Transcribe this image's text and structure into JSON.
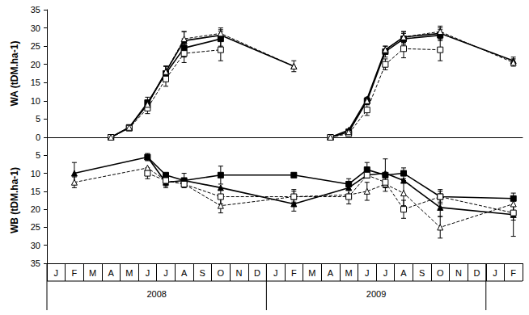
{
  "chart_data": [
    {
      "type": "line",
      "y_label": "WA (tDM.ha-1)",
      "categories": [
        "J",
        "F",
        "M",
        "A",
        "M",
        "J",
        "J",
        "A",
        "S",
        "O",
        "N",
        "D",
        "J",
        "F",
        "M",
        "A",
        "M",
        "J",
        "J",
        "A",
        "S",
        "O",
        "N",
        "D",
        "J",
        "F"
      ],
      "ylim": [
        0,
        35
      ],
      "yticks": [
        0,
        5,
        10,
        15,
        20,
        25,
        30,
        35
      ],
      "grid": false,
      "tick_labels": "y",
      "series": [
        {
          "color": "#000000",
          "marker": "square",
          "line_style": "solid",
          "values": [
            null,
            null,
            null,
            0,
            2.7,
            9.5,
            17.5,
            24.5,
            null,
            27,
            null,
            null,
            null,
            null,
            null,
            null,
            null,
            null,
            null,
            null,
            null,
            null,
            null,
            null,
            null,
            null
          ],
          "errors": [
            null,
            null,
            null,
            null,
            null,
            1.5,
            2,
            2.5,
            null,
            2,
            null,
            null,
            null,
            null,
            null,
            null,
            null,
            null,
            null,
            null,
            null,
            null,
            null,
            null,
            null,
            null
          ]
        },
        {
          "color": "#000000",
          "marker": "triangle",
          "line_style": "solid",
          "values": [
            null,
            null,
            null,
            0,
            2.7,
            9,
            18,
            26.5,
            null,
            28,
            null,
            null,
            null,
            19.5,
            null,
            null,
            null,
            null,
            null,
            null,
            null,
            null,
            null,
            null,
            null,
            null
          ],
          "errors": [
            null,
            null,
            null,
            null,
            null,
            1,
            1.5,
            2.5,
            null,
            1.5,
            null,
            null,
            null,
            1.5,
            null,
            null,
            null,
            null,
            null,
            null,
            null,
            null,
            null,
            null,
            null,
            null
          ]
        },
        {
          "color": "#000000",
          "marker": "open_square",
          "line_style": "dashed",
          "values": [
            null,
            null,
            null,
            0,
            2.5,
            8,
            16,
            23,
            null,
            24,
            null,
            null,
            null,
            null,
            null,
            null,
            null,
            null,
            null,
            null,
            null,
            null,
            null,
            null,
            null,
            null
          ],
          "errors": [
            null,
            null,
            null,
            null,
            null,
            1.5,
            2,
            2.5,
            null,
            3,
            null,
            null,
            null,
            null,
            null,
            null,
            null,
            null,
            null,
            null,
            null,
            null,
            null,
            null,
            null,
            null
          ]
        },
        {
          "color": "#000000",
          "marker": "open_triangle",
          "line_style": "dashed",
          "values": [
            null,
            null,
            null,
            0,
            2.7,
            9,
            18,
            27,
            null,
            28.5,
            null,
            null,
            null,
            19.5,
            null,
            null,
            null,
            null,
            null,
            null,
            null,
            null,
            null,
            null,
            null,
            null
          ],
          "errors": [
            null,
            null,
            null,
            null,
            null,
            1,
            1.5,
            2,
            null,
            1.5,
            null,
            null,
            null,
            null,
            null,
            null,
            null,
            null,
            null,
            null,
            null,
            null,
            null,
            null,
            null,
            null
          ]
        },
        {
          "color": "#000000",
          "marker": "square",
          "line_style": "solid",
          "values": [
            null,
            null,
            null,
            null,
            null,
            null,
            null,
            null,
            null,
            null,
            null,
            null,
            null,
            null,
            null,
            0,
            1.5,
            10,
            23.5,
            27,
            null,
            28,
            null,
            null,
            null,
            null
          ],
          "errors": [
            null,
            null,
            null,
            null,
            null,
            null,
            null,
            null,
            null,
            null,
            null,
            null,
            null,
            null,
            null,
            null,
            null,
            1,
            1.5,
            1.5,
            null,
            1.5,
            null,
            null,
            null,
            null
          ]
        },
        {
          "color": "#000000",
          "marker": "triangle",
          "line_style": "solid",
          "values": [
            null,
            null,
            null,
            null,
            null,
            null,
            null,
            null,
            null,
            null,
            null,
            null,
            null,
            null,
            null,
            0,
            2,
            10.5,
            24,
            27.5,
            null,
            28.5,
            null,
            null,
            null,
            21
          ],
          "errors": [
            null,
            null,
            null,
            null,
            null,
            null,
            null,
            null,
            null,
            null,
            null,
            null,
            null,
            null,
            null,
            null,
            null,
            null,
            1,
            1.5,
            null,
            1.5,
            null,
            null,
            null,
            1
          ]
        },
        {
          "color": "#000000",
          "marker": "open_square",
          "line_style": "dashed",
          "values": [
            null,
            null,
            null,
            null,
            null,
            null,
            null,
            null,
            null,
            null,
            null,
            null,
            null,
            null,
            null,
            0,
            1,
            7.5,
            20,
            24.3,
            null,
            24,
            null,
            null,
            null,
            null
          ],
          "errors": [
            null,
            null,
            null,
            null,
            null,
            null,
            null,
            null,
            null,
            null,
            null,
            null,
            null,
            null,
            null,
            null,
            null,
            1.5,
            1.5,
            2.5,
            null,
            3,
            null,
            null,
            null,
            null
          ]
        },
        {
          "color": "#000000",
          "marker": "open_triangle",
          "line_style": "dashed",
          "values": [
            null,
            null,
            null,
            null,
            null,
            null,
            null,
            null,
            null,
            null,
            null,
            null,
            null,
            null,
            null,
            0,
            1.5,
            10,
            24,
            27.5,
            null,
            29,
            null,
            null,
            null,
            20.5
          ],
          "errors": [
            null,
            null,
            null,
            null,
            null,
            null,
            null,
            null,
            null,
            null,
            null,
            null,
            null,
            null,
            null,
            null,
            null,
            null,
            null,
            1.5,
            null,
            1.5,
            null,
            null,
            null,
            1
          ]
        }
      ]
    },
    {
      "type": "line",
      "y_label": "WB (tDM.ha-1)",
      "categories": [
        "J",
        "F",
        "M",
        "A",
        "M",
        "J",
        "J",
        "A",
        "S",
        "O",
        "N",
        "D",
        "J",
        "F",
        "M",
        "A",
        "M",
        "J",
        "J",
        "A",
        "S",
        "O",
        "N",
        "D",
        "J",
        "F"
      ],
      "year_labels": [
        "2008",
        "2009"
      ],
      "ylim": [
        35,
        0
      ],
      "yticks": [
        5,
        10,
        15,
        20,
        25,
        30,
        35
      ],
      "grid": false,
      "series": [
        {
          "color": "#000000",
          "marker": "triangle",
          "line_style": "solid",
          "values": [
            null,
            10,
            null,
            null,
            null,
            5.5,
            12.5,
            12,
            null,
            14,
            null,
            null,
            null,
            18.5,
            null,
            null,
            14,
            10.5,
            10,
            12,
            null,
            19.5,
            null,
            null,
            null,
            21.5
          ],
          "errors": [
            null,
            3,
            null,
            null,
            null,
            1,
            1.5,
            null,
            null,
            null,
            null,
            null,
            null,
            2,
            null,
            null,
            null,
            null,
            4,
            null,
            null,
            2.5,
            null,
            null,
            null,
            6
          ]
        },
        {
          "color": "#000000",
          "marker": "square",
          "line_style": "solid",
          "values": [
            null,
            null,
            null,
            null,
            null,
            5.5,
            10.5,
            12,
            null,
            10.5,
            null,
            null,
            null,
            10.5,
            null,
            null,
            13,
            9,
            10.5,
            10,
            null,
            16.5,
            null,
            null,
            null,
            17
          ],
          "errors": [
            null,
            null,
            null,
            null,
            null,
            null,
            null,
            2,
            null,
            2.5,
            null,
            null,
            null,
            null,
            null,
            null,
            1.5,
            2,
            null,
            1.5,
            null,
            2,
            null,
            null,
            null,
            null
          ]
        },
        {
          "color": "#000000",
          "marker": "open_triangle",
          "line_style": "dashed",
          "values": [
            null,
            12.5,
            null,
            null,
            null,
            8.5,
            12,
            13,
            null,
            19,
            null,
            null,
            null,
            16.5,
            null,
            null,
            16,
            15,
            13,
            15.5,
            null,
            25,
            null,
            null,
            null,
            18.5
          ],
          "errors": [
            null,
            1.5,
            null,
            null,
            null,
            null,
            null,
            null,
            null,
            2,
            null,
            null,
            null,
            2,
            null,
            null,
            null,
            2.5,
            2,
            3.5,
            null,
            3,
            null,
            null,
            null,
            2
          ]
        },
        {
          "color": "#000000",
          "marker": "open_square",
          "line_style": "dashed",
          "values": [
            null,
            null,
            null,
            null,
            null,
            10,
            12,
            13,
            null,
            16.5,
            null,
            null,
            null,
            16.5,
            null,
            null,
            16.5,
            10.5,
            12.5,
            20,
            null,
            16.5,
            null,
            null,
            null,
            21
          ],
          "errors": [
            null,
            null,
            null,
            null,
            null,
            1.5,
            1.5,
            null,
            null,
            2,
            null,
            null,
            null,
            1.5,
            null,
            null,
            2,
            null,
            null,
            2.5,
            null,
            1.5,
            null,
            null,
            null,
            2
          ]
        }
      ]
    }
  ]
}
